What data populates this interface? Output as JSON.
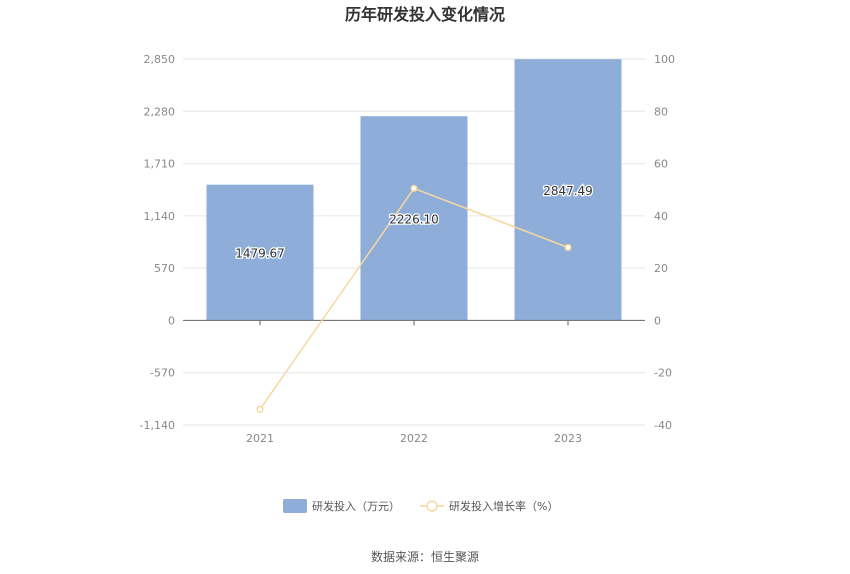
{
  "chart_data": {
    "type": "bar",
    "title": "历年研发投入变化情况",
    "categories": [
      "2021",
      "2022",
      "2023"
    ],
    "series": [
      {
        "name": "研发投入（万元）",
        "type": "bar",
        "axis": "left",
        "values": [
          1479.67,
          2226.1,
          2847.49
        ],
        "labels": [
          "1479.67",
          "2226.10",
          "2847.49"
        ]
      },
      {
        "name": "研发投入增长率（%）",
        "type": "line",
        "axis": "right",
        "values": [
          -34.0,
          50.5,
          27.9
        ]
      }
    ],
    "y_left": {
      "ticks": [
        "2,850",
        "2,280",
        "1,710",
        "1,140",
        "570",
        "0",
        "-570",
        "-1,140"
      ],
      "tick_values": [
        2850,
        2280,
        1710,
        1140,
        570,
        0,
        -570,
        -1140
      ],
      "ylim": [
        -1140,
        2850
      ]
    },
    "y_right": {
      "ticks": [
        "100",
        "80",
        "60",
        "40",
        "20",
        "0",
        "-20",
        "-40"
      ],
      "tick_values": [
        100,
        80,
        60,
        40,
        20,
        0,
        -20,
        -40
      ],
      "ylim": [
        -40,
        100
      ]
    },
    "grid": true,
    "legend_position": "bottom",
    "colors": {
      "bar": "#8eadd9",
      "line": "#f8d8a0",
      "grid": "#e6e6e6",
      "axis": "#666666"
    },
    "source": "数据来源：恒生聚源"
  }
}
